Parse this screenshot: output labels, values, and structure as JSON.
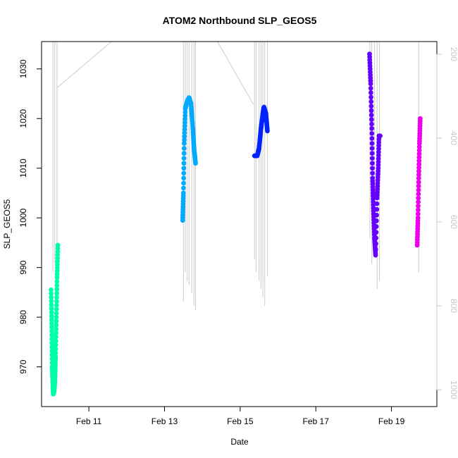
{
  "chart_data": {
    "type": "scatter",
    "title": "ATOM2 Northbound SLP_GEOS5",
    "xlabel": "Date",
    "ylabel": "SLP_GEOS5",
    "x_ticks": [
      "Feb 11",
      "Feb 13",
      "Feb 15",
      "Feb 17",
      "Feb 19"
    ],
    "x_tick_values": [
      11,
      13,
      15,
      17,
      19
    ],
    "xlim": [
      9.75,
      20.2
    ],
    "ylim": [
      962,
      1035.5
    ],
    "y_ticks": [
      970,
      980,
      990,
      1000,
      1010,
      1020,
      1030
    ],
    "right_axis": {
      "ticks": [
        200,
        400,
        600,
        800,
        1000
      ],
      "lim": [
        1040,
        170
      ],
      "color": "#c8c8c8"
    },
    "grid": false,
    "series": [
      {
        "color": "#00ffaa",
        "points": [
          [
            10.0,
            985.5
          ],
          [
            10.02,
            978
          ],
          [
            10.03,
            970
          ],
          [
            10.05,
            966
          ],
          [
            10.06,
            964.5
          ],
          [
            10.08,
            965
          ],
          [
            10.1,
            967
          ],
          [
            10.12,
            972
          ],
          [
            10.14,
            980
          ],
          [
            10.16,
            988
          ],
          [
            10.18,
            994.5
          ]
        ]
      },
      {
        "color": "#00aaff",
        "points": [
          [
            13.48,
            999.5
          ],
          [
            13.5,
            1005
          ],
          [
            13.52,
            1015
          ],
          [
            13.55,
            1022
          ],
          [
            13.6,
            1023.5
          ],
          [
            13.65,
            1024.2
          ],
          [
            13.7,
            1023
          ],
          [
            13.75,
            1018
          ],
          [
            13.78,
            1014
          ],
          [
            13.82,
            1011
          ]
        ]
      },
      {
        "color": "#0022ff",
        "points": [
          [
            15.38,
            1012.5
          ],
          [
            15.45,
            1012.5
          ],
          [
            15.5,
            1014
          ],
          [
            15.55,
            1018
          ],
          [
            15.6,
            1021
          ],
          [
            15.63,
            1022.3
          ],
          [
            15.68,
            1021
          ],
          [
            15.72,
            1017.5
          ]
        ]
      },
      {
        "color": "#6600ff",
        "points": [
          [
            18.42,
            1033
          ],
          [
            18.45,
            1027
          ],
          [
            18.48,
            1018
          ],
          [
            18.5,
            1008
          ],
          [
            18.52,
            1002
          ],
          [
            18.55,
            996
          ],
          [
            18.58,
            992.5
          ],
          [
            18.62,
            1004
          ],
          [
            18.65,
            1010
          ],
          [
            18.67,
            1016.5
          ],
          [
            18.7,
            1016.5
          ]
        ]
      },
      {
        "color": "#ee00ee",
        "points": [
          [
            19.68,
            994.5
          ],
          [
            19.7,
            1000
          ],
          [
            19.72,
            1008
          ],
          [
            19.74,
            1015
          ],
          [
            19.76,
            1020
          ]
        ]
      }
    ],
    "altitude_traces": {
      "color": "#cccccc",
      "segments": [
        [
          [
            10.05,
            160
          ],
          [
            10.05,
            720
          ]
        ],
        [
          [
            10.1,
            160
          ],
          [
            10.1,
            700
          ]
        ],
        [
          [
            10.16,
            160
          ],
          [
            10.16,
            780
          ]
        ],
        [
          [
            10.16,
            280
          ],
          [
            11.6,
            160
          ]
        ],
        [
          [
            13.5,
            160
          ],
          [
            13.5,
            790
          ]
        ],
        [
          [
            13.55,
            160
          ],
          [
            13.55,
            720
          ]
        ],
        [
          [
            13.6,
            160
          ],
          [
            13.6,
            740
          ]
        ],
        [
          [
            13.65,
            160
          ],
          [
            13.65,
            750
          ]
        ],
        [
          [
            13.72,
            160
          ],
          [
            13.72,
            770
          ]
        ],
        [
          [
            13.78,
            160
          ],
          [
            13.78,
            800
          ]
        ],
        [
          [
            13.82,
            160
          ],
          [
            13.82,
            810
          ]
        ],
        [
          [
            14.4,
            160
          ],
          [
            15.35,
            320
          ]
        ],
        [
          [
            15.38,
            160
          ],
          [
            15.38,
            690
          ]
        ],
        [
          [
            15.42,
            160
          ],
          [
            15.42,
            720
          ]
        ],
        [
          [
            15.5,
            160
          ],
          [
            15.5,
            740
          ]
        ],
        [
          [
            15.55,
            160
          ],
          [
            15.55,
            760
          ]
        ],
        [
          [
            15.6,
            160
          ],
          [
            15.6,
            780
          ]
        ],
        [
          [
            15.65,
            160
          ],
          [
            15.65,
            800
          ]
        ],
        [
          [
            15.72,
            160
          ],
          [
            15.72,
            730
          ]
        ],
        [
          [
            18.43,
            160
          ],
          [
            18.43,
            640
          ]
        ],
        [
          [
            18.48,
            160
          ],
          [
            18.48,
            700
          ]
        ],
        [
          [
            18.55,
            160
          ],
          [
            18.55,
            680
          ]
        ],
        [
          [
            18.62,
            160
          ],
          [
            18.62,
            760
          ]
        ],
        [
          [
            18.68,
            160
          ],
          [
            18.68,
            740
          ]
        ],
        [
          [
            19.72,
            160
          ],
          [
            19.72,
            720
          ]
        ]
      ]
    }
  }
}
